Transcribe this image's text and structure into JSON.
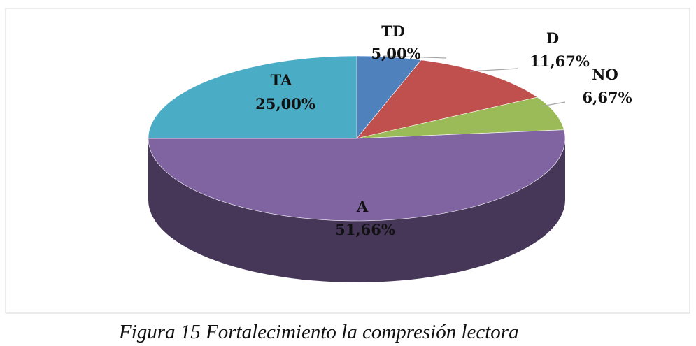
{
  "chart_data": {
    "type": "pie",
    "categories": [
      "TD",
      "D",
      "NO",
      "A",
      "TA"
    ],
    "values": [
      5,
      11.67,
      6.67,
      51.66,
      25
    ],
    "value_labels": [
      "5,00%",
      "11,67%",
      "6,67%",
      "51,66%",
      "25,00%"
    ],
    "colors": [
      "#4f81bd",
      "#c0504d",
      "#9bbb59",
      "#8064a2",
      "#4bacc6"
    ]
  },
  "caption": "Figura 15 Fortalecimiento la compresión lectora"
}
